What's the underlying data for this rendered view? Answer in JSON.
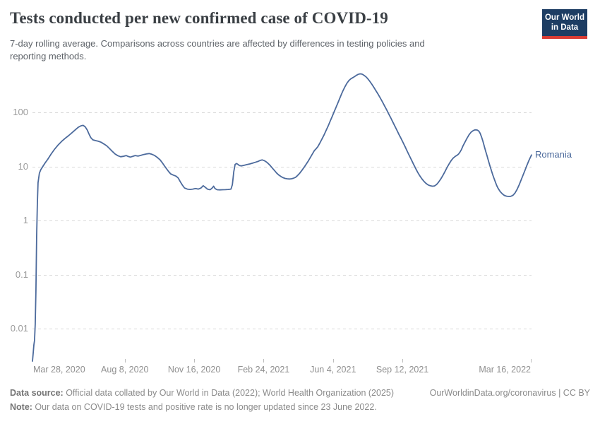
{
  "header": {
    "title": "Tests conducted per new confirmed case of COVID-19",
    "subtitle_line1": "7-day rolling average. Comparisons across countries are affected by differences in testing policies and",
    "subtitle_line2": "reporting methods.",
    "logo": {
      "line1": "Our World",
      "line2": "in Data"
    }
  },
  "chart_data": {
    "type": "line",
    "title": "Tests conducted per new confirmed case of COVID-19",
    "subtitle": "7-day rolling average. Comparisons across countries are affected by differences in testing policies and reporting methods.",
    "y_scale": "log",
    "grid": true,
    "y_ticks": [
      {
        "label": "100",
        "value": 100
      },
      {
        "label": "10",
        "value": 10
      },
      {
        "label": "1",
        "value": 1
      },
      {
        "label": "0.1",
        "value": 0.1
      },
      {
        "label": "0.01",
        "value": 0.01
      }
    ],
    "x_ticks": [
      {
        "label": "Mar 28, 2020",
        "day": 0,
        "tick": false
      },
      {
        "label": "Aug 8, 2020",
        "day": 133,
        "tick": true
      },
      {
        "label": "Nov 16, 2020",
        "day": 233,
        "tick": true
      },
      {
        "label": "Feb 24, 2021",
        "day": 333,
        "tick": true
      },
      {
        "label": "Jun 4, 2021",
        "day": 433,
        "tick": true
      },
      {
        "label": "Sep 12, 2021",
        "day": 533,
        "tick": true
      },
      {
        "label": "Mar 16, 2022",
        "day": 718,
        "tick": true
      }
    ],
    "x_range_days": [
      0,
      719
    ],
    "y_range": [
      0.002,
      600
    ],
    "legend_position": "end-of-line",
    "line_color": "#4C6A9C",
    "grid_color": "#d9d9d9",
    "series": [
      {
        "name": "Romania",
        "color": "#4C6A9C",
        "points": [
          [
            0,
            0.0025
          ],
          [
            1,
            0.0035
          ],
          [
            2,
            0.005
          ],
          [
            3,
            0.006
          ],
          [
            4,
            0.012
          ],
          [
            5,
            0.05
          ],
          [
            6,
            0.5
          ],
          [
            7,
            2
          ],
          [
            8,
            5
          ],
          [
            10,
            7.5
          ],
          [
            12,
            8.7
          ],
          [
            15,
            10
          ],
          [
            18,
            11.5
          ],
          [
            22,
            13.5
          ],
          [
            27,
            17
          ],
          [
            32,
            21
          ],
          [
            37,
            25
          ],
          [
            42,
            29
          ],
          [
            47,
            33
          ],
          [
            52,
            37
          ],
          [
            57,
            42
          ],
          [
            62,
            48
          ],
          [
            66,
            53
          ],
          [
            70,
            56.5
          ],
          [
            73,
            57.5
          ],
          [
            76,
            54
          ],
          [
            79,
            47
          ],
          [
            81,
            41
          ],
          [
            84,
            34
          ],
          [
            87,
            31
          ],
          [
            91,
            30
          ],
          [
            95,
            29.2
          ],
          [
            99,
            28
          ],
          [
            103,
            26
          ],
          [
            107,
            24
          ],
          [
            111,
            21.5
          ],
          [
            115,
            19
          ],
          [
            119,
            17
          ],
          [
            123,
            15.8
          ],
          [
            127,
            15.1
          ],
          [
            131,
            15.4
          ],
          [
            135,
            15.9
          ],
          [
            138,
            15.3
          ],
          [
            141,
            14.9
          ],
          [
            144,
            15.3
          ],
          [
            148,
            15.9
          ],
          [
            152,
            15.5
          ],
          [
            156,
            16
          ],
          [
            160,
            16.6
          ],
          [
            164,
            17
          ],
          [
            168,
            17.3
          ],
          [
            172,
            16.8
          ],
          [
            176,
            15.9
          ],
          [
            180,
            14.6
          ],
          [
            184,
            13.2
          ],
          [
            187,
            11.7
          ],
          [
            190,
            10.3
          ],
          [
            193,
            9.1
          ],
          [
            196,
            8.1
          ],
          [
            199,
            7.3
          ],
          [
            203,
            6.9
          ],
          [
            207,
            6.6
          ],
          [
            210,
            6.1
          ],
          [
            213,
            5.2
          ],
          [
            216,
            4.5
          ],
          [
            219,
            4
          ],
          [
            223,
            3.8
          ],
          [
            227,
            3.75
          ],
          [
            231,
            3.8
          ],
          [
            235,
            3.9
          ],
          [
            239,
            3.8
          ],
          [
            243,
            4
          ],
          [
            246,
            4.4
          ],
          [
            249,
            4.1
          ],
          [
            252,
            3.8
          ],
          [
            256,
            3.7
          ],
          [
            259,
            4
          ],
          [
            261,
            4.3
          ],
          [
            263,
            3.9
          ],
          [
            266,
            3.7
          ],
          [
            270,
            3.68
          ],
          [
            274,
            3.7
          ],
          [
            278,
            3.72
          ],
          [
            282,
            3.75
          ],
          [
            286,
            3.8
          ],
          [
            288,
            4.6
          ],
          [
            290,
            8
          ],
          [
            292,
            10.9
          ],
          [
            294,
            11.3
          ],
          [
            296,
            10.9
          ],
          [
            298,
            10.4
          ],
          [
            301,
            10.2
          ],
          [
            305,
            10.5
          ],
          [
            309,
            10.8
          ],
          [
            313,
            11.1
          ],
          [
            317,
            11.5
          ],
          [
            321,
            11.9
          ],
          [
            325,
            12.4
          ],
          [
            328,
            12.9
          ],
          [
            331,
            13.2
          ],
          [
            334,
            12.8
          ],
          [
            337,
            12.1
          ],
          [
            340,
            11.2
          ],
          [
            343,
            10.2
          ],
          [
            346,
            9.2
          ],
          [
            349,
            8.3
          ],
          [
            352,
            7.5
          ],
          [
            355,
            6.9
          ],
          [
            358,
            6.5
          ],
          [
            361,
            6.2
          ],
          [
            364,
            6
          ],
          [
            367,
            5.9
          ],
          [
            370,
            5.85
          ],
          [
            373,
            5.9
          ],
          [
            376,
            6.05
          ],
          [
            379,
            6.3
          ],
          [
            382,
            6.8
          ],
          [
            385,
            7.5
          ],
          [
            388,
            8.4
          ],
          [
            391,
            9.5
          ],
          [
            394,
            10.8
          ],
          [
            397,
            12.4
          ],
          [
            400,
            14.4
          ],
          [
            403,
            16.8
          ],
          [
            406,
            19.5
          ],
          [
            409,
            21.5
          ],
          [
            411,
            23
          ],
          [
            414,
            27
          ],
          [
            417,
            32
          ],
          [
            420,
            38
          ],
          [
            423,
            46
          ],
          [
            426,
            56
          ],
          [
            429,
            69
          ],
          [
            432,
            85
          ],
          [
            435,
            105
          ],
          [
            438,
            130
          ],
          [
            441,
            160
          ],
          [
            444,
            200
          ],
          [
            447,
            245
          ],
          [
            450,
            295
          ],
          [
            453,
            345
          ],
          [
            456,
            390
          ],
          [
            459,
            420
          ],
          [
            461,
            435
          ],
          [
            463,
            450
          ],
          [
            465,
            468
          ],
          [
            467,
            487
          ],
          [
            469,
            503
          ],
          [
            471,
            512
          ],
          [
            473,
            515
          ],
          [
            475,
            508
          ],
          [
            477,
            492
          ],
          [
            480,
            460
          ],
          [
            483,
            420
          ],
          [
            486,
            375
          ],
          [
            489,
            330
          ],
          [
            492,
            288
          ],
          [
            495,
            250
          ],
          [
            498,
            216
          ],
          [
            501,
            186
          ],
          [
            504,
            158
          ],
          [
            507,
            134
          ],
          [
            510,
            113
          ],
          [
            513,
            95
          ],
          [
            516,
            80
          ],
          [
            519,
            67
          ],
          [
            522,
            56
          ],
          [
            525,
            47
          ],
          [
            528,
            39
          ],
          [
            531,
            33
          ],
          [
            534,
            27.5
          ],
          [
            537,
            23
          ],
          [
            540,
            19
          ],
          [
            543,
            15.8
          ],
          [
            546,
            13.2
          ],
          [
            549,
            11
          ],
          [
            552,
            9.2
          ],
          [
            555,
            7.8
          ],
          [
            558,
            6.7
          ],
          [
            561,
            5.9
          ],
          [
            564,
            5.3
          ],
          [
            567,
            4.85
          ],
          [
            570,
            4.55
          ],
          [
            573,
            4.4
          ],
          [
            576,
            4.3
          ],
          [
            579,
            4.35
          ],
          [
            582,
            4.6
          ],
          [
            585,
            5.1
          ],
          [
            588,
            5.8
          ],
          [
            591,
            6.7
          ],
          [
            594,
            7.9
          ],
          [
            597,
            9.4
          ],
          [
            600,
            11
          ],
          [
            603,
            12.7
          ],
          [
            606,
            14.2
          ],
          [
            609,
            15.3
          ],
          [
            612,
            16.2
          ],
          [
            614,
            17
          ],
          [
            616,
            18.5
          ],
          [
            618,
            20.5
          ],
          [
            620,
            23.5
          ],
          [
            623,
            28
          ],
          [
            626,
            33
          ],
          [
            629,
            38.5
          ],
          [
            632,
            43
          ],
          [
            635,
            46
          ],
          [
            637,
            47.3
          ],
          [
            639,
            47.5
          ],
          [
            641,
            47
          ],
          [
            643,
            45
          ],
          [
            645,
            41
          ],
          [
            647,
            35
          ],
          [
            649,
            29
          ],
          [
            651,
            23.5
          ],
          [
            653,
            19
          ],
          [
            655,
            15.5
          ],
          [
            657,
            12.6
          ],
          [
            659,
            10.3
          ],
          [
            661,
            8.5
          ],
          [
            663,
            7.1
          ],
          [
            665,
            6
          ],
          [
            667,
            5.1
          ],
          [
            669,
            4.4
          ],
          [
            671,
            3.9
          ],
          [
            674,
            3.4
          ],
          [
            677,
            3.1
          ],
          [
            680,
            2.9
          ],
          [
            683,
            2.82
          ],
          [
            686,
            2.78
          ],
          [
            689,
            2.8
          ],
          [
            692,
            2.9
          ],
          [
            695,
            3.2
          ],
          [
            698,
            3.7
          ],
          [
            701,
            4.5
          ],
          [
            704,
            5.6
          ],
          [
            707,
            7
          ],
          [
            710,
            8.7
          ],
          [
            712,
            10.2
          ],
          [
            714,
            11.8
          ],
          [
            716,
            13.5
          ],
          [
            718,
            15.3
          ],
          [
            719,
            16.3
          ]
        ]
      }
    ]
  },
  "footer": {
    "data_source_label": "Data source:",
    "data_source_text": " Official data collated by Our World in Data (2022); World Health Organization (2025)",
    "credit": "OurWorldinData.org/coronavirus | CC BY",
    "note_label": "Note:",
    "note_text": " Our data on COVID-19 tests and positive rate is no longer updated since 23 June 2022."
  }
}
